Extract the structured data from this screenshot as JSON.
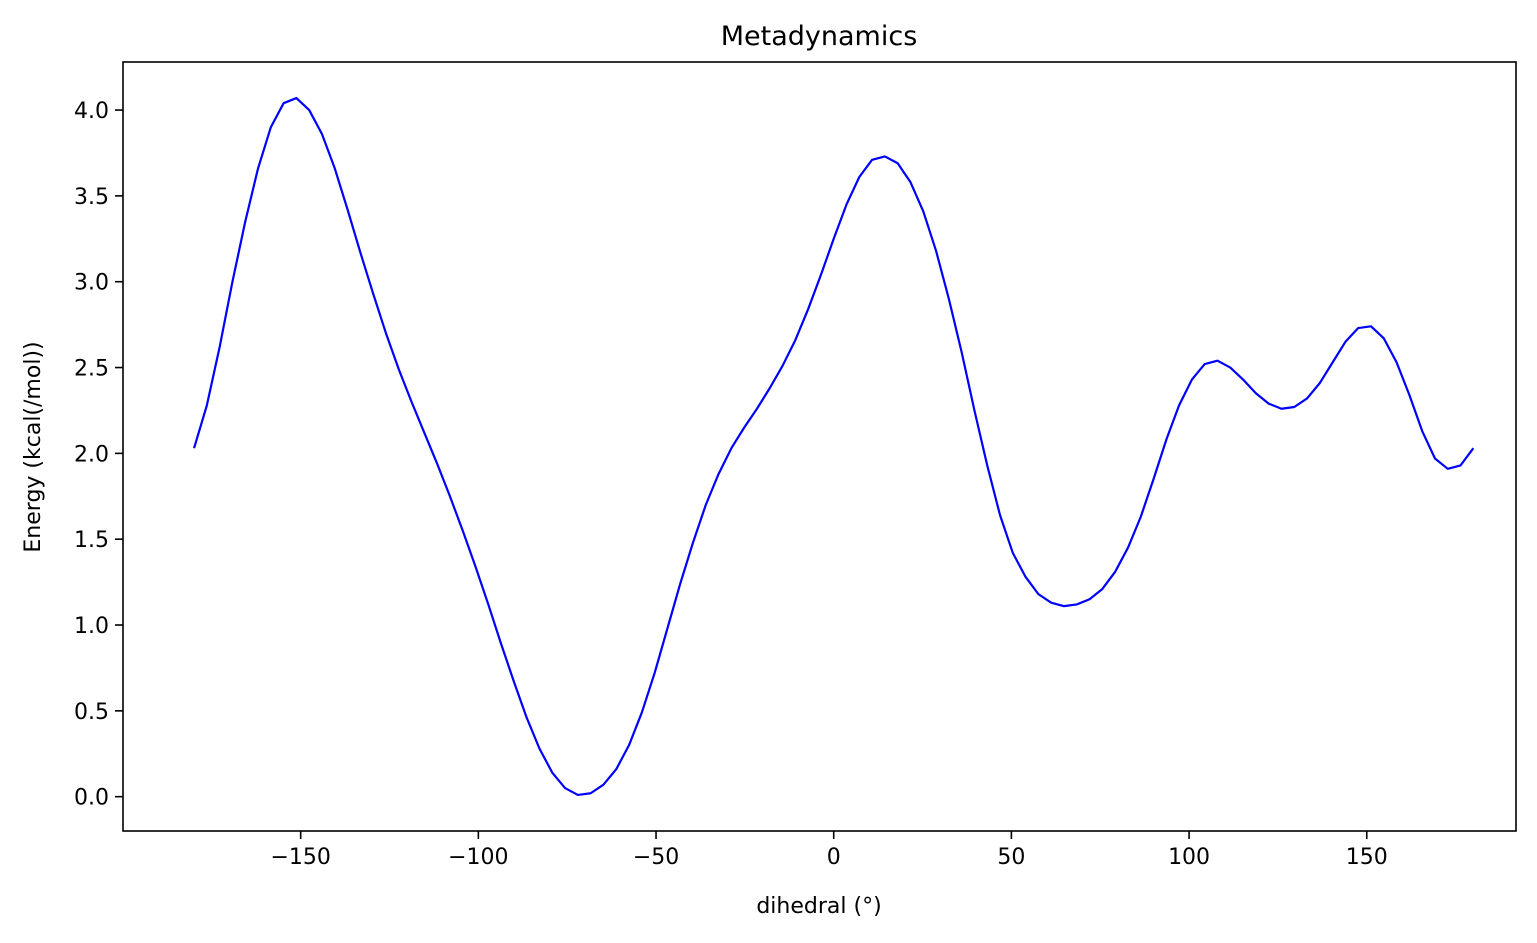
{
  "chart_data": {
    "type": "line",
    "title": "Metadynamics",
    "xlabel": "dihedral (°)",
    "ylabel": "Energy (kcal(/mol))",
    "xlim": [
      -200,
      192
    ],
    "ylim": [
      -0.2,
      4.28
    ],
    "xticks": [
      -150,
      -100,
      -50,
      0,
      50,
      100,
      150
    ],
    "xtick_labels": [
      "−150",
      "−100",
      "−50",
      "0",
      "50",
      "100",
      "150"
    ],
    "yticks": [
      0.0,
      0.5,
      1.0,
      1.5,
      2.0,
      2.5,
      3.0,
      3.5,
      4.0
    ],
    "ytick_labels": [
      "0.0",
      "0.5",
      "1.0",
      "1.5",
      "2.0",
      "2.5",
      "3.0",
      "3.5",
      "4.0"
    ],
    "grid": false,
    "legend": "none",
    "series": [
      {
        "color": "#0000ff",
        "x": [
          -180,
          -176.4,
          -172.8,
          -169.2,
          -165.6,
          -162,
          -158.4,
          -154.8,
          -151.2,
          -147.6,
          -144,
          -140.4,
          -136.8,
          -133.2,
          -129.6,
          -126,
          -122.4,
          -118.8,
          -115.2,
          -111.6,
          -108,
          -104.4,
          -100.8,
          -97.2,
          -93.6,
          -90,
          -86.4,
          -82.8,
          -79.2,
          -75.6,
          -72,
          -68.4,
          -64.8,
          -61.2,
          -57.6,
          -54,
          -50.4,
          -46.8,
          -43.2,
          -39.6,
          -36,
          -32.4,
          -28.8,
          -25.2,
          -21.6,
          -18,
          -14.4,
          -10.8,
          -7.2,
          -3.6,
          0,
          3.6,
          7.2,
          10.8,
          14.4,
          18,
          21.6,
          25.2,
          28.8,
          32.4,
          36,
          39.6,
          43.2,
          46.8,
          50.4,
          54,
          57.6,
          61.2,
          64.8,
          68.4,
          72,
          75.6,
          79.2,
          82.8,
          86.4,
          90,
          93.6,
          97.2,
          100.8,
          104.4,
          108,
          111.6,
          115.2,
          118.8,
          122.4,
          126,
          129.6,
          133.2,
          136.8,
          140.4,
          144,
          147.6,
          151.2,
          154.8,
          158.4,
          162,
          165.6,
          169.2,
          172.8,
          176.4,
          180
        ],
        "y": [
          2.03,
          2.28,
          2.62,
          3.0,
          3.35,
          3.66,
          3.9,
          4.04,
          4.07,
          4.0,
          3.86,
          3.66,
          3.42,
          3.17,
          2.93,
          2.7,
          2.49,
          2.3,
          2.12,
          1.94,
          1.75,
          1.55,
          1.34,
          1.12,
          0.89,
          0.67,
          0.46,
          0.28,
          0.14,
          0.05,
          0.01,
          0.02,
          0.07,
          0.16,
          0.3,
          0.49,
          0.72,
          0.98,
          1.24,
          1.48,
          1.7,
          1.88,
          2.03,
          2.15,
          2.26,
          2.38,
          2.51,
          2.66,
          2.84,
          3.04,
          3.25,
          3.45,
          3.61,
          3.71,
          3.73,
          3.69,
          3.58,
          3.41,
          3.18,
          2.9,
          2.59,
          2.25,
          1.93,
          1.64,
          1.42,
          1.28,
          1.18,
          1.13,
          1.11,
          1.12,
          1.15,
          1.21,
          1.31,
          1.45,
          1.63,
          1.85,
          2.08,
          2.28,
          2.43,
          2.52,
          2.54,
          2.5,
          2.43,
          2.35,
          2.29,
          2.26,
          2.27,
          2.32,
          2.41,
          2.53,
          2.65,
          2.73,
          2.74,
          2.67,
          2.53,
          2.34,
          2.13,
          1.97,
          1.91,
          1.93,
          2.03
        ]
      }
    ]
  }
}
